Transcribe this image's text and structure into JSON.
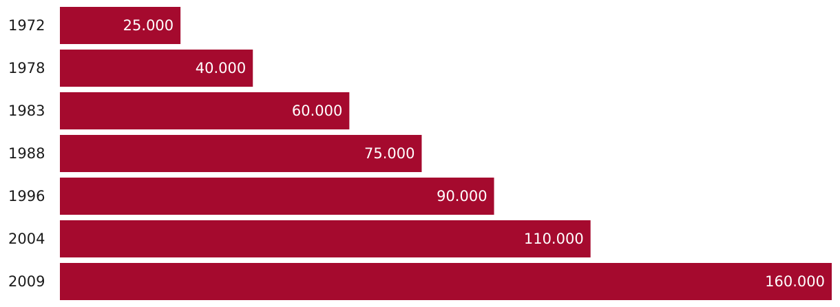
{
  "chart_data": {
    "type": "bar",
    "orientation": "horizontal",
    "categories": [
      "1972",
      "1978",
      "1983",
      "1988",
      "1996",
      "2004",
      "2009"
    ],
    "values": [
      25000,
      40000,
      60000,
      75000,
      90000,
      110000,
      160000
    ],
    "value_labels": [
      "25.000",
      "40.000",
      "60.000",
      "75.000",
      "90.000",
      "110.000",
      "160.000"
    ],
    "xlim": [
      0,
      160000
    ],
    "grid": false,
    "bar_color": "#a50a2e",
    "title": "",
    "xlabel": "",
    "ylabel": ""
  }
}
